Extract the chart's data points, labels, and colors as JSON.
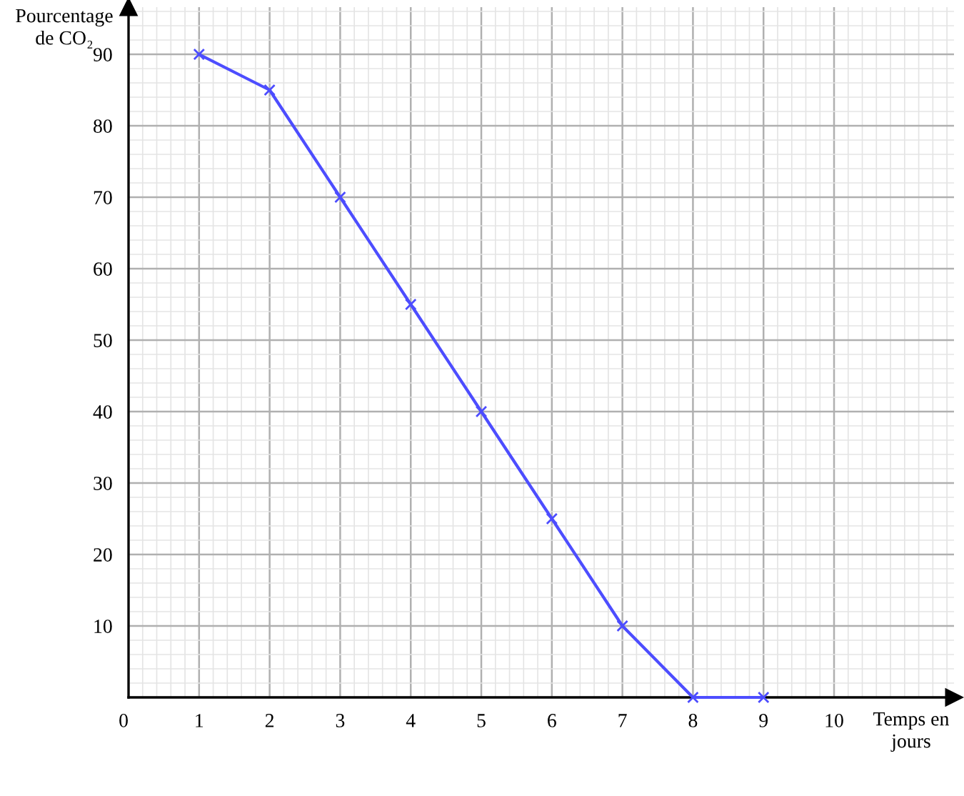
{
  "chart_data": {
    "type": "line",
    "xlabel": "Temps en\njours",
    "ylabel": "Pourcentage\nde CO₂",
    "x": [
      1,
      2,
      3,
      4,
      5,
      6,
      7,
      8,
      9
    ],
    "series": [
      {
        "color": "#4d4dff",
        "values": [
          90,
          85,
          70,
          55,
          40,
          25,
          10,
          0,
          0
        ]
      }
    ],
    "xlim": [
      0,
      11.7
    ],
    "ylim": [
      0,
      96.6
    ],
    "xticks": [
      {
        "value": 0,
        "label": "0"
      },
      1,
      2,
      3,
      4,
      5,
      6,
      7,
      8,
      9,
      10
    ],
    "yticks": [
      {
        "value": 0,
        "label": null
      },
      10,
      20,
      30,
      40,
      50,
      60,
      70,
      80,
      90
    ],
    "grid": true,
    "marker": "cross",
    "line_style": "solid"
  }
}
